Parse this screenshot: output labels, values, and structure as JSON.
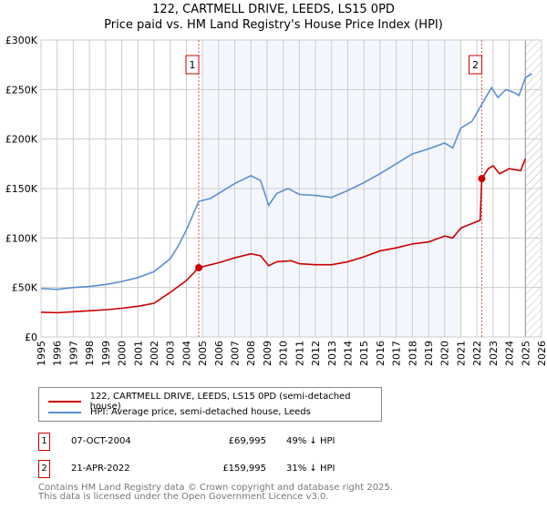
{
  "title_line1": "122, CARTMELL DRIVE, LEEDS, LS15 0PD",
  "title_line2": "Price paid vs. HM Land Registry's House Price Index (HPI)",
  "chart_data": {
    "type": "line",
    "title": "122, CARTMELL DRIVE, LEEDS, LS15 0PD — Price paid vs. HM Land Registry's House Price Index (HPI)",
    "xlim": [
      1995,
      2026
    ],
    "ylim": [
      0,
      300000
    ],
    "x_ticks": [
      "1995",
      "1996",
      "1997",
      "1998",
      "1999",
      "2000",
      "2001",
      "2002",
      "2003",
      "2004",
      "2005",
      "2006",
      "2007",
      "2008",
      "2009",
      "2010",
      "2011",
      "2012",
      "2013",
      "2014",
      "2015",
      "2016",
      "2017",
      "2018",
      "2019",
      "2020",
      "2021",
      "2022",
      "2023",
      "2024",
      "2025",
      "2026"
    ],
    "y_ticks": [
      {
        "v": 0,
        "label": "£0"
      },
      {
        "v": 50000,
        "label": "£50K"
      },
      {
        "v": 100000,
        "label": "£100K"
      },
      {
        "v": 150000,
        "label": "£150K"
      },
      {
        "v": 200000,
        "label": "£200K"
      },
      {
        "v": 250000,
        "label": "£250K"
      },
      {
        "v": 300000,
        "label": "£300K"
      }
    ],
    "grid": true,
    "shaded_range": [
      2005,
      2021
    ],
    "hatched_from": 2025,
    "series": [
      {
        "name": "122, CARTMELL DRIVE, LEEDS, LS15 0PD (semi-detached house)",
        "color": "#cc0000",
        "points": [
          [
            1995,
            25000
          ],
          [
            1996,
            24500
          ],
          [
            1997,
            25500
          ],
          [
            1998,
            26500
          ],
          [
            1999,
            27500
          ],
          [
            2000,
            29000
          ],
          [
            2001,
            31000
          ],
          [
            2002,
            34000
          ],
          [
            2003,
            45000
          ],
          [
            2004,
            57000
          ],
          [
            2004.77,
            69995
          ],
          [
            2005.5,
            73000
          ],
          [
            2006,
            75000
          ],
          [
            2007,
            80000
          ],
          [
            2008,
            84000
          ],
          [
            2008.6,
            82000
          ],
          [
            2009.1,
            72000
          ],
          [
            2009.6,
            76000
          ],
          [
            2010.5,
            77000
          ],
          [
            2011,
            74000
          ],
          [
            2012,
            73000
          ],
          [
            2013,
            73000
          ],
          [
            2014,
            76000
          ],
          [
            2015,
            81000
          ],
          [
            2016,
            87000
          ],
          [
            2017,
            90000
          ],
          [
            2018,
            94000
          ],
          [
            2019,
            96000
          ],
          [
            2020,
            102000
          ],
          [
            2020.5,
            100000
          ],
          [
            2021,
            110000
          ],
          [
            2022.2,
            118000
          ],
          [
            2022.3,
            159995
          ],
          [
            2022.7,
            170000
          ],
          [
            2023,
            173000
          ],
          [
            2023.4,
            165000
          ],
          [
            2024,
            170000
          ],
          [
            2024.7,
            168000
          ],
          [
            2025,
            180000
          ]
        ]
      },
      {
        "name": "HPI: Average price, semi-detached house, Leeds",
        "color": "#5b8fd0",
        "points": [
          [
            1995,
            49000
          ],
          [
            1996,
            48000
          ],
          [
            1997,
            50000
          ],
          [
            1998,
            51000
          ],
          [
            1999,
            53000
          ],
          [
            2000,
            56000
          ],
          [
            2001,
            60000
          ],
          [
            2002,
            66000
          ],
          [
            2003,
            79000
          ],
          [
            2003.5,
            92000
          ],
          [
            2004,
            108000
          ],
          [
            2004.77,
            137000
          ],
          [
            2005.5,
            140000
          ],
          [
            2006,
            145000
          ],
          [
            2007,
            155000
          ],
          [
            2008,
            163000
          ],
          [
            2008.6,
            158000
          ],
          [
            2009.1,
            133000
          ],
          [
            2009.6,
            145000
          ],
          [
            2010.3,
            150000
          ],
          [
            2011,
            144000
          ],
          [
            2012,
            143000
          ],
          [
            2013,
            141000
          ],
          [
            2014,
            148000
          ],
          [
            2015,
            156000
          ],
          [
            2016,
            165000
          ],
          [
            2017,
            175000
          ],
          [
            2018,
            185000
          ],
          [
            2019,
            190000
          ],
          [
            2020,
            196000
          ],
          [
            2020.5,
            191000
          ],
          [
            2021,
            211000
          ],
          [
            2021.7,
            218000
          ],
          [
            2022.3,
            235000
          ],
          [
            2022.9,
            252000
          ],
          [
            2023.3,
            242000
          ],
          [
            2023.8,
            250000
          ],
          [
            2024.3,
            247000
          ],
          [
            2024.6,
            244000
          ],
          [
            2025,
            262000
          ],
          [
            2025.4,
            266000
          ]
        ]
      }
    ],
    "annotations": [
      {
        "label": "1",
        "x": 2004.77,
        "y": 69995
      },
      {
        "label": "2",
        "x": 2022.3,
        "y": 159995
      }
    ]
  },
  "legend": [
    "122, CARTMELL DRIVE, LEEDS, LS15 0PD (semi-detached house)",
    "HPI: Average price, semi-detached house, Leeds"
  ],
  "transactions": [
    {
      "num": "1",
      "date": "07-OCT-2004",
      "price": "£69,995",
      "hpi": "49% ↓ HPI"
    },
    {
      "num": "2",
      "date": "21-APR-2022",
      "price": "£159,995",
      "hpi": "31% ↓ HPI"
    }
  ],
  "footer_line1": "Contains HM Land Registry data © Crown copyright and database right 2025.",
  "footer_line2": "This data is licensed under the Open Government Licence v3.0."
}
